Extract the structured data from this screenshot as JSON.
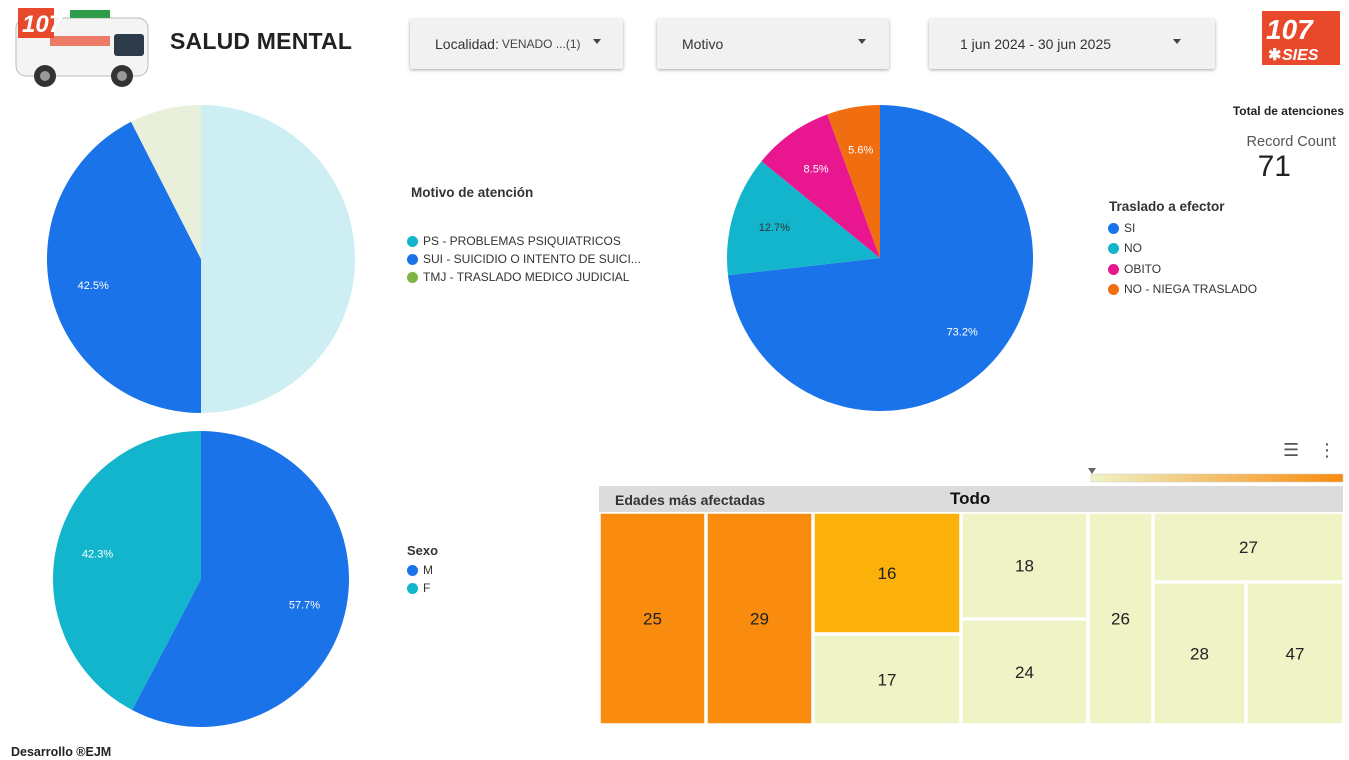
{
  "header": {
    "title": "SALUD MENTAL",
    "filters": [
      {
        "label": "Localidad:",
        "value": "VENADO ...(1)"
      },
      {
        "label": "Motivo",
        "value": ""
      },
      {
        "label": "1 jun 2024 - 30 jun 2025",
        "value": ""
      }
    ],
    "logo_text": "107",
    "logo_sub": "SIES"
  },
  "kpi": {
    "heading": "Total de atenciones",
    "label": "Record Count",
    "value": "71"
  },
  "footer": {
    "text": "Desarrollo  ®EJM"
  },
  "chart_data": [
    {
      "type": "pie",
      "title": "Motivo de atención",
      "categories": [
        "PS - PROBLEMAS PSIQUIATRICOS",
        "SUI - SUICIDIO O INTENTO DE SUICI...",
        "TMJ - TRASLADO MEDICO JUDICIAL"
      ],
      "values": [
        50.0,
        42.5,
        7.5
      ],
      "shown_labels": [
        "",
        "42.5%",
        ""
      ],
      "colors": [
        "#cdeef3",
        "#1a73e8",
        "#e8f0dc"
      ],
      "legend_colors": [
        "#12b5cb",
        "#1a73e8",
        "#7cb342"
      ]
    },
    {
      "type": "pie",
      "title": "Traslado a efector",
      "categories": [
        "SI",
        "NO",
        "OBITO",
        "NO - NIEGA TRASLADO"
      ],
      "values": [
        73.2,
        12.7,
        8.5,
        5.6
      ],
      "shown_labels": [
        "73.2%",
        "12.7%",
        "8.5%",
        "5.6%"
      ],
      "colors": [
        "#1a73e8",
        "#12b5cb",
        "#e8168f",
        "#f06d10"
      ]
    },
    {
      "type": "pie",
      "title": "Sexo",
      "categories": [
        "M",
        "F"
      ],
      "values": [
        57.7,
        42.3
      ],
      "shown_labels": [
        "57.7%",
        "42.3%"
      ],
      "colors": [
        "#1a73e8",
        "#12b5cb"
      ]
    },
    {
      "type": "treemap",
      "title": "Edades más afectadas",
      "root": "Todo",
      "categories": [
        "25",
        "29",
        "16",
        "17",
        "18",
        "24",
        "26",
        "27",
        "28",
        "47"
      ],
      "values": [
        6,
        6,
        4,
        4,
        3,
        3,
        3,
        2,
        2,
        2
      ],
      "colors": [
        "#f98b0e",
        "#f98b0e",
        "#fbb10a",
        "#eff3c6",
        "#eff3c6",
        "#eff3c6",
        "#eff3c6",
        "#eff3c6",
        "#eff3c6",
        "#eff3c6"
      ]
    }
  ]
}
